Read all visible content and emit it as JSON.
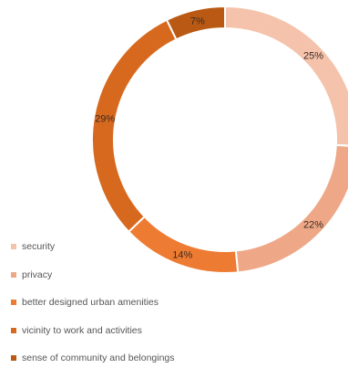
{
  "chart_data": {
    "type": "pie",
    "donut": true,
    "categories": [
      "security",
      "privacy",
      "better designed urban amenities",
      "vicinity to work and activities",
      "sense of community and belongings"
    ],
    "values": [
      25,
      22,
      14,
      29,
      7
    ],
    "labels": [
      "25%",
      "22%",
      "14%",
      "29%",
      "7%"
    ],
    "colors": [
      "#f5c3ab",
      "#eea887",
      "#ee7b32",
      "#d7691f",
      "#b95913"
    ],
    "legend_position": "left-bottom"
  }
}
